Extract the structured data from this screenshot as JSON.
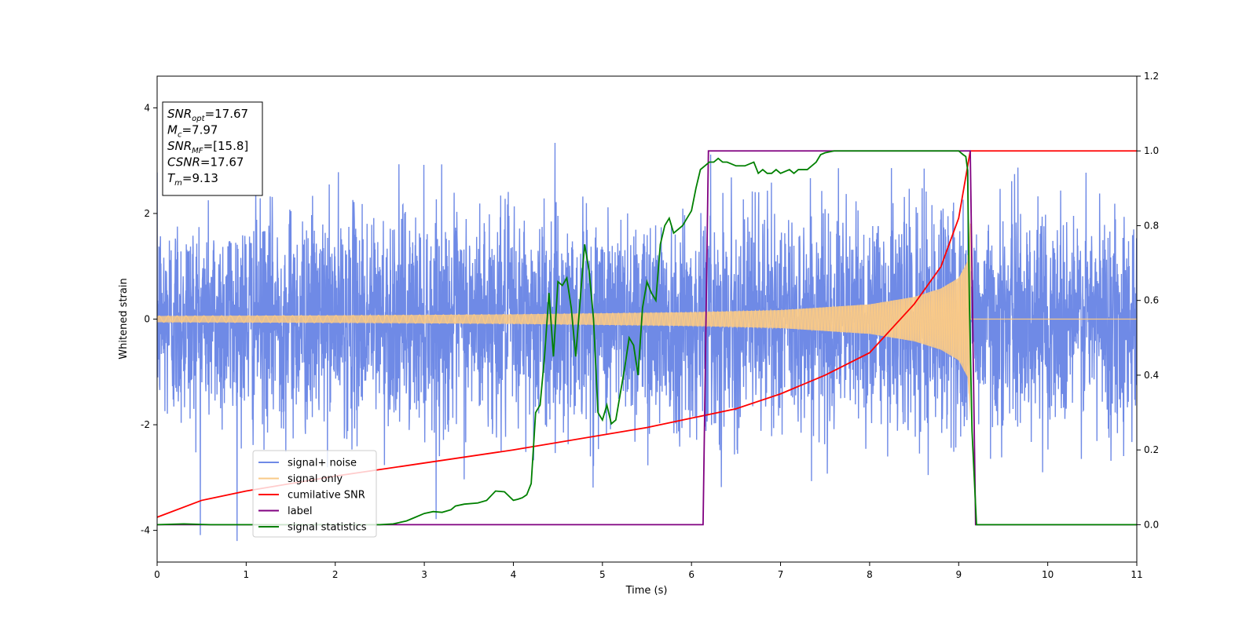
{
  "chart_data": {
    "type": "line",
    "xlabel": "Time (s)",
    "ylabel": "Whitened strain",
    "xlim": [
      0,
      11
    ],
    "ylim_left": [
      -4.6,
      4.6
    ],
    "ylim_right": [
      -0.1,
      1.2
    ],
    "x_ticks": [
      0,
      1,
      2,
      3,
      4,
      5,
      6,
      7,
      8,
      9,
      10,
      11
    ],
    "y_ticks_left": [
      -4,
      -2,
      0,
      2,
      4
    ],
    "y_ticks_right": [
      "0.0",
      "0.2",
      "0.4",
      "0.6",
      "0.8",
      "1.0",
      "1.2"
    ],
    "grid": false,
    "legend_position": "lower-left",
    "legend": [
      {
        "label": "signal+ noise",
        "color": "#6f8ae6"
      },
      {
        "label": "signal only",
        "color": "#f9c987"
      },
      {
        "label": "cumilative SNR",
        "color": "#ff0000"
      },
      {
        "label": "label",
        "color": "#800080"
      },
      {
        "label": "signal statistics",
        "color": "#008000"
      }
    ],
    "annotation": [
      {
        "var": "SNR",
        "sub": "opt",
        "value": "=17.67"
      },
      {
        "var": "M",
        "sub": "c",
        "value": "=7.97"
      },
      {
        "var": "SNR",
        "sub": "MF",
        "value": "=[15.8]"
      },
      {
        "var": "CSNR",
        "sub": "",
        "value": "=17.67"
      },
      {
        "var": "T",
        "sub": "m",
        "value": "=9.13"
      }
    ],
    "series": [
      {
        "name": "signal+ noise",
        "axis": "left",
        "color": "#6f8ae6",
        "description_values": {
          "noise_sigma": 1.0,
          "duration": [
            0,
            11
          ],
          "peak_max": 4.2,
          "peak_min": -4.2
        }
      },
      {
        "name": "signal only",
        "axis": "left",
        "color": "#f9c987",
        "envelope": {
          "x": [
            0,
            2,
            4,
            6,
            7,
            8,
            8.5,
            8.8,
            9.0,
            9.1,
            9.13
          ],
          "amp": [
            0.06,
            0.07,
            0.09,
            0.13,
            0.17,
            0.28,
            0.42,
            0.58,
            0.78,
            1.1,
            1.9
          ]
        },
        "ends_at": 9.13
      },
      {
        "name": "cumilative SNR",
        "axis": "right",
        "color": "#ff0000",
        "x": [
          0,
          0.5,
          1,
          2,
          3,
          4,
          5,
          5.5,
          6,
          6.5,
          7,
          7.5,
          8,
          8.5,
          8.8,
          9.0,
          9.13,
          9.2,
          11
        ],
        "y": [
          0.02,
          0.065,
          0.09,
          0.13,
          0.165,
          0.2,
          0.24,
          0.26,
          0.285,
          0.31,
          0.35,
          0.4,
          0.46,
          0.59,
          0.69,
          0.82,
          1.0,
          1.0,
          1.0
        ]
      },
      {
        "name": "label",
        "axis": "right",
        "color": "#800080",
        "x": [
          0,
          6.13,
          6.19,
          9.13,
          9.19,
          11
        ],
        "y": [
          0.0,
          0.0,
          1.0,
          1.0,
          0.0,
          0.0
        ]
      },
      {
        "name": "signal statistics",
        "axis": "right",
        "color": "#008000",
        "x": [
          0,
          0.3,
          0.6,
          1,
          1.5,
          2,
          2.5,
          2.65,
          2.8,
          2.9,
          3.0,
          3.1,
          3.2,
          3.3,
          3.35,
          3.45,
          3.6,
          3.7,
          3.8,
          3.9,
          4.0,
          4.05,
          4.1,
          4.15,
          4.2,
          4.25,
          4.3,
          4.35,
          4.4,
          4.45,
          4.5,
          4.55,
          4.6,
          4.65,
          4.7,
          4.75,
          4.8,
          4.85,
          4.9,
          4.95,
          5.0,
          5.05,
          5.1,
          5.15,
          5.2,
          5.25,
          5.3,
          5.35,
          5.4,
          5.45,
          5.5,
          5.55,
          5.6,
          5.65,
          5.7,
          5.75,
          5.8,
          5.85,
          5.9,
          5.95,
          6.0,
          6.05,
          6.1,
          6.15,
          6.2,
          6.25,
          6.3,
          6.35,
          6.4,
          6.5,
          6.6,
          6.7,
          6.75,
          6.8,
          6.85,
          6.9,
          6.95,
          7.0,
          7.1,
          7.15,
          7.2,
          7.3,
          7.4,
          7.45,
          7.5,
          7.6,
          7.8,
          8.0,
          8.5,
          8.7,
          9.0,
          9.05,
          9.08,
          9.1,
          9.12,
          9.15,
          9.2,
          11
        ],
        "y": [
          0.0,
          0.002,
          0.0,
          0.0,
          0.0,
          0.0,
          0.0,
          0.002,
          0.01,
          0.02,
          0.03,
          0.035,
          0.033,
          0.04,
          0.05,
          0.055,
          0.058,
          0.065,
          0.09,
          0.088,
          0.065,
          0.068,
          0.072,
          0.08,
          0.11,
          0.3,
          0.32,
          0.45,
          0.62,
          0.45,
          0.65,
          0.64,
          0.66,
          0.58,
          0.45,
          0.6,
          0.75,
          0.68,
          0.55,
          0.3,
          0.28,
          0.32,
          0.27,
          0.28,
          0.35,
          0.42,
          0.5,
          0.48,
          0.4,
          0.58,
          0.65,
          0.62,
          0.6,
          0.75,
          0.8,
          0.82,
          0.78,
          0.79,
          0.8,
          0.82,
          0.84,
          0.9,
          0.95,
          0.96,
          0.97,
          0.97,
          0.98,
          0.97,
          0.97,
          0.96,
          0.96,
          0.97,
          0.94,
          0.95,
          0.94,
          0.94,
          0.95,
          0.94,
          0.95,
          0.94,
          0.95,
          0.95,
          0.97,
          0.99,
          0.995,
          1.0,
          1.0,
          1.0,
          1.0,
          1.0,
          1.0,
          0.99,
          0.985,
          0.95,
          0.6,
          0.25,
          0.0,
          0.0
        ]
      }
    ]
  }
}
